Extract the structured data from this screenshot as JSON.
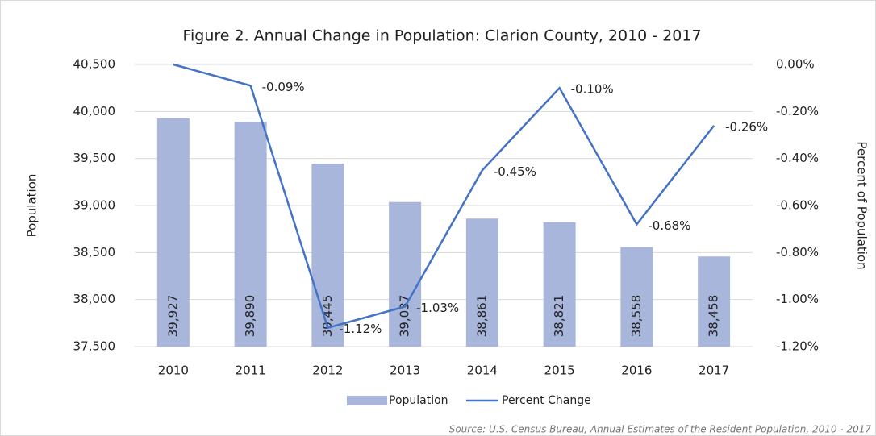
{
  "chart_data": {
    "type": "bar",
    "title": "Figure 2. Annual Change in Population: Clarion County, 2010 - 2017",
    "ylabel": "Population",
    "y2label": "Percent of Population",
    "source": "Source: U.S. Census Bureau, Annual Estimates of the Resident Population, 2010 - 2017",
    "categories": [
      "2010",
      "2011",
      "2012",
      "2013",
      "2014",
      "2015",
      "2016",
      "2017"
    ],
    "series": [
      {
        "name": "Population",
        "type": "bar",
        "color": "#a9b6dc",
        "values": [
          39927,
          39890,
          39445,
          39037,
          38861,
          38821,
          38558,
          38458
        ],
        "value_labels": [
          "39,927",
          "39,890",
          "39,445",
          "39,037",
          "38,861",
          "38,821",
          "38,558",
          "38,458"
        ]
      },
      {
        "name": "Percent Change",
        "type": "line",
        "axis": "y2",
        "color": "#4472c4",
        "values": [
          0,
          -0.09,
          -1.12,
          -1.03,
          -0.45,
          -0.1,
          -0.68,
          -0.26
        ],
        "value_labels": [
          null,
          "-0.09%",
          "-1.12%",
          "-1.03%",
          "-0.45%",
          "-0.10%",
          "-0.68%",
          "-0.26%"
        ]
      }
    ],
    "ylim": [
      37500,
      40500
    ],
    "yticks": [
      {
        "value": 37500,
        "label": "37,500"
      },
      {
        "value": 38000,
        "label": "38,000"
      },
      {
        "value": 38500,
        "label": "38,500"
      },
      {
        "value": 39000,
        "label": "39,000"
      },
      {
        "value": 39500,
        "label": "39,500"
      },
      {
        "value": 40000,
        "label": "40,000"
      },
      {
        "value": 40500,
        "label": "40,500"
      }
    ],
    "y2lim": [
      -1.2,
      0
    ],
    "y2ticks": [
      {
        "value": -1.2,
        "label": "-1.20%"
      },
      {
        "value": -1.0,
        "label": "-1.00%"
      },
      {
        "value": -0.8,
        "label": "-0.80%"
      },
      {
        "value": -0.6,
        "label": "-0.60%"
      },
      {
        "value": -0.4,
        "label": "-0.40%"
      },
      {
        "value": -0.2,
        "label": "-0.20%"
      },
      {
        "value": 0,
        "label": "0.00%"
      }
    ],
    "grid": true,
    "legend": "bottom"
  }
}
